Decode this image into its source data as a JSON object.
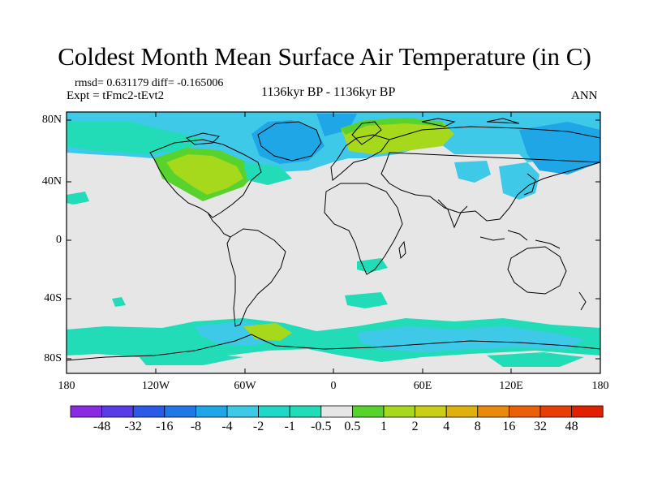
{
  "title": "Coldest Month Mean Surface Air Temperature (in C)",
  "stats": "rmsd= 0.631179 diff= -0.165006",
  "experiment": "Expt = tFmc2-tEvt2",
  "period": "1136kyr BP - 1136kyr BP",
  "season": "ANN",
  "colors": {
    "neutral_fill": "#e6e6e6",
    "ocean_cyan": "#3fc9e8",
    "teal": "#22dcb8",
    "blue": "#1fa6e6",
    "green_1": "#58d22c",
    "green_2": "#a6d81b",
    "coast_line": "#000000"
  },
  "map": {
    "projection": "cylindrical equidistant",
    "lon_ticks": [
      "180",
      "120W",
      "60W",
      "0",
      "60E",
      "120E",
      "180"
    ],
    "lat_ticks": [
      "80N",
      "40N",
      "0",
      "40S",
      "80S"
    ]
  },
  "colorbar": {
    "labels": [
      "-48",
      "-32",
      "-16",
      "-8",
      "-4",
      "-2",
      "-1",
      "-0.5",
      "0.5",
      "1",
      "2",
      "4",
      "8",
      "16",
      "32",
      "48"
    ],
    "colors": [
      "#8a2be2",
      "#5a3ce6",
      "#2c5ae8",
      "#1f78e6",
      "#1fa6e6",
      "#3fc9e8",
      "#20d8c8",
      "#22dcb8",
      "#e6e6e6",
      "#58d22c",
      "#a6d81b",
      "#c9cf14",
      "#dfb10f",
      "#e88a0c",
      "#ea6009",
      "#e83e06",
      "#e02000"
    ]
  }
}
